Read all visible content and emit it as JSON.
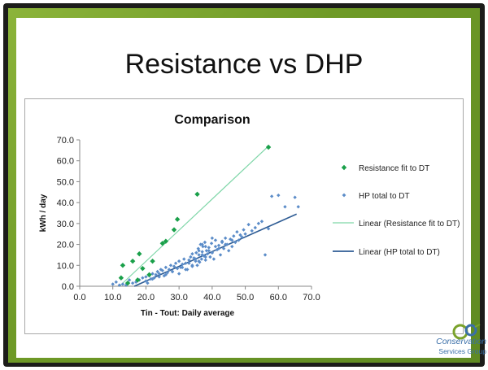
{
  "slide": {
    "title": "Resistance vs DHP",
    "logo_text_line1": "Conservation",
    "logo_text_line2": "Services Group",
    "logo_letters": "CSG"
  },
  "colors": {
    "frame": "#1c1c1a",
    "band": "#6f9a27",
    "resistance": "#1aa04a",
    "resistance_line": "#7fd6a8",
    "hp": "#5b8cc8",
    "hp_line": "#2e5c94",
    "logo": "#3a6fa8",
    "logo_green": "#7aa22b"
  },
  "chart_data": {
    "type": "scatter",
    "title": "Comparison",
    "xlabel": "Tin - Tout: Daily average",
    "ylabel": "kWh / day",
    "xlim": [
      0,
      70
    ],
    "ylim": [
      0,
      70
    ],
    "xticks": [
      "0.0",
      "10.0",
      "20.0",
      "30.0",
      "40.0",
      "50.0",
      "60.0",
      "70.0"
    ],
    "yticks": [
      "0.0",
      "10.0",
      "20.0",
      "30.0",
      "40.0",
      "50.0",
      "60.0",
      "70.0"
    ],
    "grid": false,
    "legend_position": "right",
    "series": [
      {
        "name": "Resistance fit to DT",
        "marker": "diamond",
        "x": [
          12.5,
          13,
          14.5,
          16,
          17.5,
          18,
          19,
          21,
          22,
          25,
          26,
          28.5,
          29.5,
          35.5,
          57
        ],
        "y": [
          4,
          10,
          1.5,
          12,
          3,
          15.5,
          8.5,
          5.5,
          12,
          20.5,
          21.5,
          27,
          32,
          44,
          66.5
        ]
      },
      {
        "name": "HP total to DT",
        "marker": "diamond-small",
        "x": [
          10,
          11,
          12,
          13,
          14,
          15,
          16,
          17,
          18,
          19,
          20,
          20.5,
          21,
          21.5,
          22,
          22.5,
          23,
          23.5,
          24,
          24.5,
          25,
          25.5,
          26,
          26.5,
          27,
          27.5,
          28,
          28.5,
          29,
          29.5,
          30,
          30.5,
          31,
          31.5,
          32,
          32.5,
          33,
          33.5,
          34,
          34.5,
          35,
          35.2,
          35.5,
          35.8,
          36,
          36.2,
          36.5,
          36.8,
          37,
          37.2,
          37.5,
          37.8,
          38,
          38.3,
          38.6,
          39,
          39.4,
          39.8,
          40,
          40.5,
          41,
          41.5,
          42,
          42.5,
          43,
          43.5,
          44,
          44.5,
          45,
          45.5,
          46,
          46.5,
          47,
          47.5,
          48,
          48.5,
          49,
          49.5,
          50,
          51,
          52,
          53,
          54,
          55,
          56,
          57,
          58,
          60,
          62,
          65,
          66,
          30,
          32,
          34,
          36,
          38,
          40,
          42,
          44,
          46,
          28,
          33,
          35,
          37,
          39,
          41,
          43,
          31,
          36,
          38,
          26,
          24,
          22,
          20,
          34,
          37,
          40
        ],
        "y": [
          1,
          2,
          0.5,
          1,
          0.5,
          3,
          1.5,
          2,
          3,
          4,
          4.5,
          1.5,
          5,
          3.5,
          6,
          4,
          5.5,
          7,
          6,
          8,
          7.5,
          5,
          9,
          6.5,
          8,
          10,
          7,
          9.5,
          11,
          8.5,
          12,
          9,
          10.5,
          13,
          11,
          8,
          12.5,
          14,
          9.5,
          13.5,
          12,
          16,
          10,
          18,
          15,
          11.5,
          20,
          13,
          16.5,
          19,
          14.5,
          21,
          12.5,
          17,
          15.5,
          18.5,
          14,
          20.5,
          16,
          13,
          22,
          17.5,
          19.5,
          15,
          21.5,
          18,
          23,
          20,
          17,
          22.5,
          19,
          24,
          21,
          26,
          22,
          24.5,
          23.5,
          27,
          25,
          29.5,
          26.5,
          28,
          30,
          31,
          15,
          27.5,
          43,
          43.5,
          38,
          42.5,
          38,
          6,
          8,
          10,
          12,
          14,
          16,
          18,
          20,
          22,
          7,
          11,
          13,
          15,
          17,
          19,
          21,
          9,
          17,
          19,
          5.5,
          4.5,
          3.5,
          2.5,
          15.5,
          20,
          23
        ]
      }
    ],
    "trendlines": [
      {
        "name": "Linear (Resistance fit to DT)",
        "x": [
          12,
          57
        ],
        "y": [
          0,
          67
        ]
      },
      {
        "name": "Linear (HP total to DT)",
        "x": [
          16.5,
          65.5
        ],
        "y": [
          0,
          34.5
        ]
      }
    ]
  }
}
